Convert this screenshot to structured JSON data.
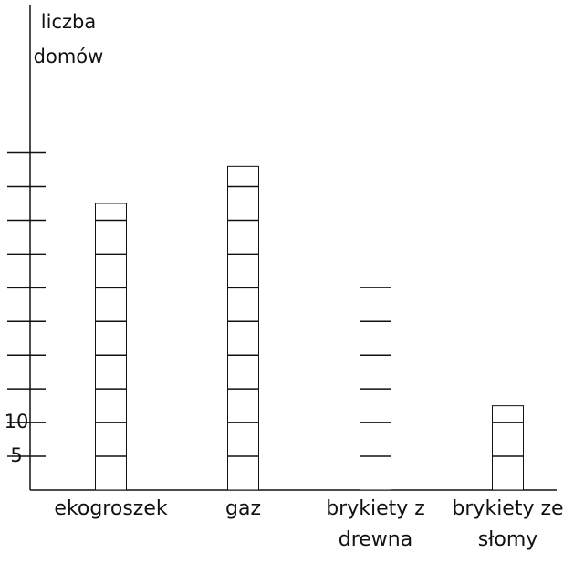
{
  "chart_data": {
    "type": "bar",
    "y_label": [
      "liczba",
      "domów"
    ],
    "categories": [
      "ekogroszek",
      "gaz",
      "brykiety z drewna",
      "brykiety ze słomy"
    ],
    "values": [
      42.5,
      48,
      30,
      12.5
    ],
    "color": "#ffffff",
    "ylim": [
      0,
      72
    ],
    "yticks": [
      5,
      10
    ],
    "y_minor_ticks": [
      15,
      20,
      25,
      30,
      35,
      40,
      45,
      50
    ],
    "grid": false
  }
}
